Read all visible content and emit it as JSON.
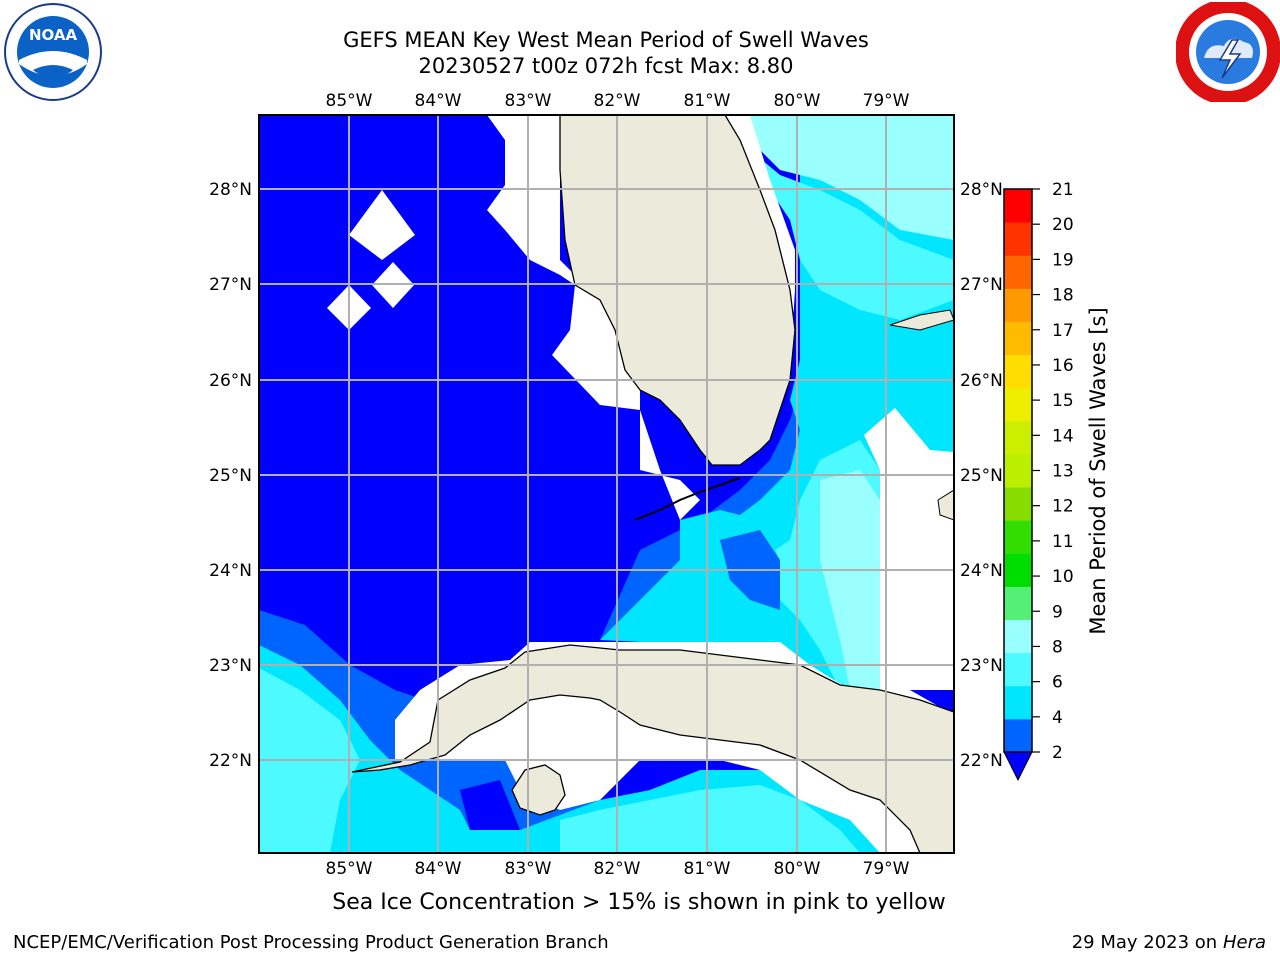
{
  "title_line1": "GEFS MEAN Key West Mean Period of Swell Waves",
  "title_line2": "20230527 t00z 072h fcst   Max: 8.80",
  "logos": {
    "left": "noaa-logo",
    "left_text": "NOAA",
    "right": "national-weather-service-logo"
  },
  "map": {
    "lon_labels": [
      "85°W",
      "84°W",
      "83°W",
      "82°W",
      "81°W",
      "80°W",
      "79°W"
    ],
    "lat_labels": [
      "28°N",
      "27°N",
      "26°N",
      "25°N",
      "24°N",
      "23°N",
      "22°N"
    ],
    "colors": {
      "land": "#ecebdb",
      "missing": "#ffffff",
      "lt2": "#0000ff",
      "c2_4": "#0064ff",
      "c4_6": "#00e6ff",
      "c6_8": "#4dfaff",
      "c8_9": "#99ffff",
      "grid": "#b0b0b0"
    }
  },
  "colorbar": {
    "label": "Mean Period of Swell Waves [s]",
    "ticks": [
      "2",
      "4",
      "6",
      "8",
      "9",
      "10",
      "11",
      "12",
      "13",
      "14",
      "15",
      "16",
      "17",
      "18",
      "19",
      "20",
      "21"
    ],
    "segment_colors": [
      "#0064ff",
      "#00e6ff",
      "#4dfaff",
      "#99ffff",
      "#55ee77",
      "#00dd00",
      "#33dd00",
      "#88dd00",
      "#bbee00",
      "#ccee00",
      "#eeee00",
      "#ffdd00",
      "#ffbb00",
      "#ff9900",
      "#ff6600",
      "#ff3300",
      "#ff0000"
    ],
    "under_color": "#0000ff"
  },
  "ice_note": "Sea Ice Concentration > 15% is shown in pink to yellow",
  "footer_left": "NCEP/EMC/Verification Post Processing Product Generation Branch",
  "footer_date": "29 May 2023 on",
  "footer_machine": "Hera"
}
